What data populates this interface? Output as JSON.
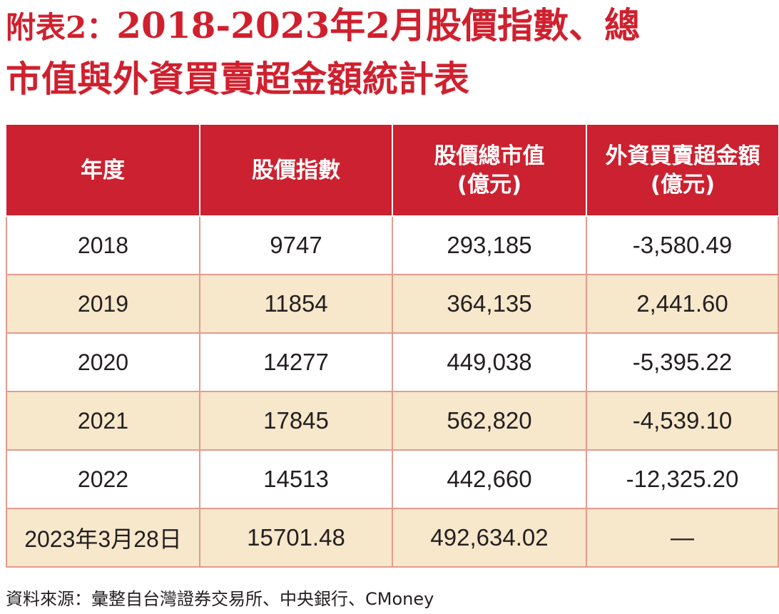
{
  "title": {
    "prefix": "附表2：",
    "line1": "2018-2023年2月股價指數、總",
    "line2": "市值與外資買賣超金額統計表"
  },
  "table": {
    "headers": [
      {
        "main": "年度",
        "sub": ""
      },
      {
        "main": "股價指數",
        "sub": ""
      },
      {
        "main": "股價總市值",
        "sub": "(億元)"
      },
      {
        "main": "外資買賣超金額",
        "sub": "(億元)"
      }
    ],
    "rows": [
      [
        "2018",
        "9747",
        "293,185",
        "-3,580.49"
      ],
      [
        "2019",
        "11854",
        "364,135",
        "2,441.60"
      ],
      [
        "2020",
        "14277",
        "449,038",
        "-5,395.22"
      ],
      [
        "2021",
        "17845",
        "562,820",
        "-4,539.10"
      ],
      [
        "2022",
        "14513",
        "442,660",
        "-12,325.20"
      ],
      [
        "2023年3月28日",
        "15701.48",
        "492,634.02",
        "—"
      ]
    ]
  },
  "source": "資料來源：彙整自台灣證券交易所、中央銀行、CMoney",
  "colors": {
    "title_red": "#d0202e",
    "header_red": "#cc2130",
    "band_beige": "#f7e7cb",
    "grid_line": "#e59a8e"
  }
}
